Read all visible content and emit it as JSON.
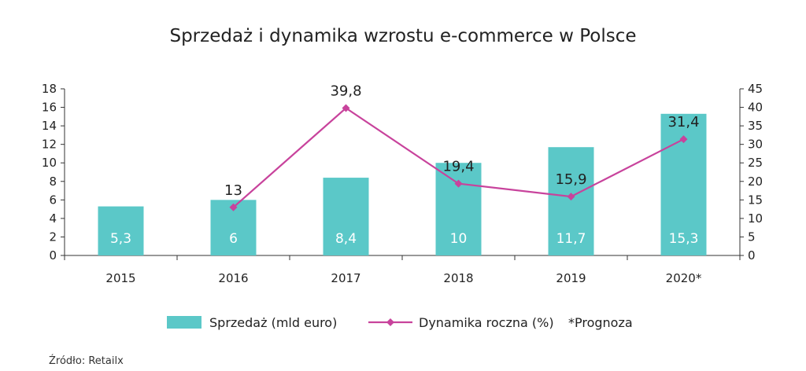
{
  "chart_data": {
    "type": "bar",
    "title": "Sprzedaż i dynamika wzrostu e-commerce w Polsce",
    "categories": [
      "2015",
      "2016",
      "2017",
      "2018",
      "2019",
      "2020*"
    ],
    "series": [
      {
        "name": "Sprzedaż (mld euro)",
        "type": "bar",
        "axis": "left",
        "values": [
          5.3,
          6,
          8.4,
          10,
          11.7,
          15.3
        ],
        "labels": [
          "5,3",
          "6",
          "8,4",
          "10",
          "11,7",
          "15,3"
        ],
        "color": "#5bc8c8"
      },
      {
        "name": "Dynamika roczna (%)",
        "type": "line",
        "axis": "right",
        "values": [
          null,
          13,
          39.8,
          19.4,
          15.9,
          31.4
        ],
        "labels": [
          "",
          "13",
          "39,8",
          "19,4",
          "15,9",
          "31,4"
        ],
        "color": "#c8439c"
      }
    ],
    "y_left": {
      "min": 0,
      "max": 18,
      "ticks": [
        "0",
        "2",
        "4",
        "6",
        "8",
        "10",
        "12",
        "14",
        "16",
        "18"
      ]
    },
    "y_right": {
      "min": 0,
      "max": 45,
      "ticks": [
        "0",
        "5",
        "10",
        "15",
        "20",
        "25",
        "30",
        "35",
        "40",
        "45"
      ]
    },
    "legend_position": "bottom",
    "legend_note": "*Prognoza",
    "grid": false
  },
  "source": "Źródło: Retailx",
  "colors": {
    "bar": "#5bc8c8",
    "line": "#c8439c",
    "axis": "#333333"
  }
}
